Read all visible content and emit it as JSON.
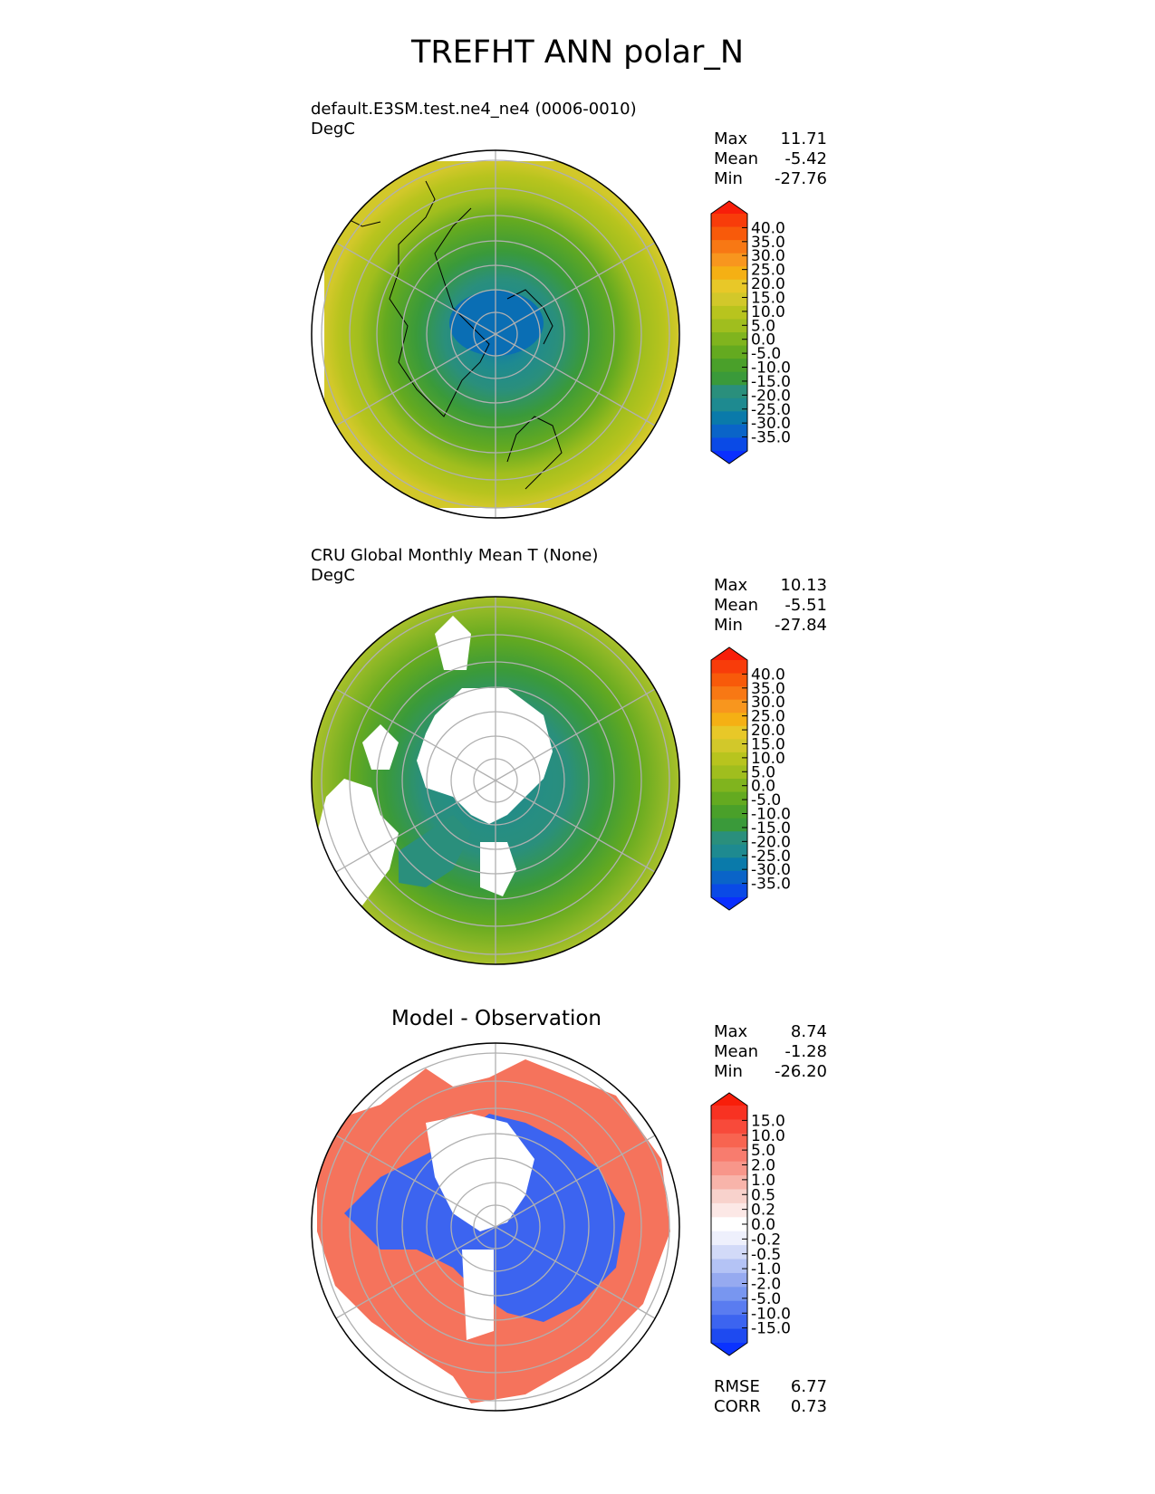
{
  "title": "TREFHT ANN polar_N",
  "colors": {
    "model_cmap": [
      "#0a2fff",
      "#0a4ae6",
      "#0a64c8",
      "#0a7aaa",
      "#1e8a90",
      "#2a8f7c",
      "#3a9a3a",
      "#4aa02a",
      "#64aa20",
      "#80b41e",
      "#a0be1e",
      "#b8c41e",
      "#d2c82a",
      "#e8c828",
      "#f5b014",
      "#f8961e",
      "#f87814",
      "#f85a0a",
      "#f83c0a",
      "#f81e0a"
    ],
    "diff_cmap": [
      "#0a32ff",
      "#1e4af0",
      "#3c64f0",
      "#5a7cf0",
      "#7896f0",
      "#96aaf0",
      "#b4c3f5",
      "#d2daf8",
      "#eef0fc",
      "#ffffff",
      "#fce8e6",
      "#f8d2cc",
      "#f8b4aa",
      "#f8968a",
      "#f87c6e",
      "#f86450",
      "#f84a3a",
      "#f83222",
      "#f81e0a"
    ],
    "land_mid": "#3aa03a",
    "land_edge": "#a8c02a",
    "diff_red": "#f4644a",
    "diff_blue": "#3c64f0"
  },
  "panels": [
    {
      "name": "model",
      "title_line1": "default.E3SM.test.ne4_ne4 (0006-0010)",
      "title_line2": "DegC",
      "stats": [
        {
          "label": "Max",
          "value": "11.71"
        },
        {
          "label": "Mean",
          "value": "-5.42"
        },
        {
          "label": "Min",
          "value": "-27.76"
        }
      ],
      "colorbar_ticks": [
        "40.0",
        "35.0",
        "30.0",
        "25.0",
        "20.0",
        "15.0",
        "10.0",
        "5.0",
        "0.0",
        "-5.0",
        "-10.0",
        "-15.0",
        "-20.0",
        "-25.0",
        "-30.0",
        "-35.0"
      ]
    },
    {
      "name": "observation",
      "title_line1": "CRU Global Monthly Mean T (None)",
      "title_line2": "DegC",
      "stats": [
        {
          "label": "Max",
          "value": "10.13"
        },
        {
          "label": "Mean",
          "value": "-5.51"
        },
        {
          "label": "Min",
          "value": "-27.84"
        }
      ],
      "colorbar_ticks": [
        "40.0",
        "35.0",
        "30.0",
        "25.0",
        "20.0",
        "15.0",
        "10.0",
        "5.0",
        "0.0",
        "-5.0",
        "-10.0",
        "-15.0",
        "-20.0",
        "-25.0",
        "-30.0",
        "-35.0"
      ]
    },
    {
      "name": "difference",
      "title": "Model - Observation",
      "stats": [
        {
          "label": "Max",
          "value": "8.74"
        },
        {
          "label": "Mean",
          "value": "-1.28"
        },
        {
          "label": "Min",
          "value": "-26.20"
        }
      ],
      "colorbar_ticks": [
        "15.0",
        "10.0",
        "5.0",
        "2.0",
        "1.0",
        "0.5",
        "0.2",
        "0.0",
        "-0.2",
        "-0.5",
        "-1.0",
        "-2.0",
        "-5.0",
        "-10.0",
        "-15.0"
      ],
      "metrics": [
        {
          "label": "RMSE",
          "value": "6.77"
        },
        {
          "label": "CORR",
          "value": "0.73"
        }
      ]
    }
  ],
  "chart_data": [
    {
      "type": "heatmap",
      "title": "default.E3SM.test.ne4_ne4 (0006-0010)",
      "units": "DegC",
      "projection": "north polar stereographic",
      "field_levels_DegC": {
        "pole": -27.5,
        "lat80": -22,
        "lat70": -12,
        "lat60": -5,
        "lat50": 3,
        "lat40": 8
      },
      "stats": {
        "max": 11.71,
        "mean": -5.42,
        "min": -27.76
      },
      "levels": [
        -35,
        -30,
        -25,
        -20,
        -15,
        -10,
        -5,
        0,
        5,
        10,
        15,
        20,
        25,
        30,
        35,
        40
      ]
    },
    {
      "type": "heatmap",
      "title": "CRU Global Monthly Mean T (None)",
      "units": "DegC",
      "projection": "north polar stereographic",
      "field_levels_DegC": {
        "greenland": -25,
        "siberia": -15,
        "canada": -12,
        "lat55": -3,
        "lat45": 2
      },
      "stats": {
        "max": 10.13,
        "mean": -5.51,
        "min": -27.84
      },
      "levels": [
        -35,
        -30,
        -25,
        -20,
        -15,
        -10,
        -5,
        0,
        5,
        10,
        15,
        20,
        25,
        30,
        35,
        40
      ]
    },
    {
      "type": "heatmap",
      "title": "Model - Observation",
      "units": "DegC",
      "projection": "north polar stereographic",
      "stats": {
        "max": 8.74,
        "mean": -1.28,
        "min": -26.2,
        "rmse": 6.77,
        "corr": 0.73
      },
      "levels": [
        -15,
        -10,
        -5,
        -2,
        -1,
        -0.5,
        -0.2,
        0,
        0.2,
        0.5,
        1,
        2,
        5,
        10,
        15
      ]
    }
  ]
}
